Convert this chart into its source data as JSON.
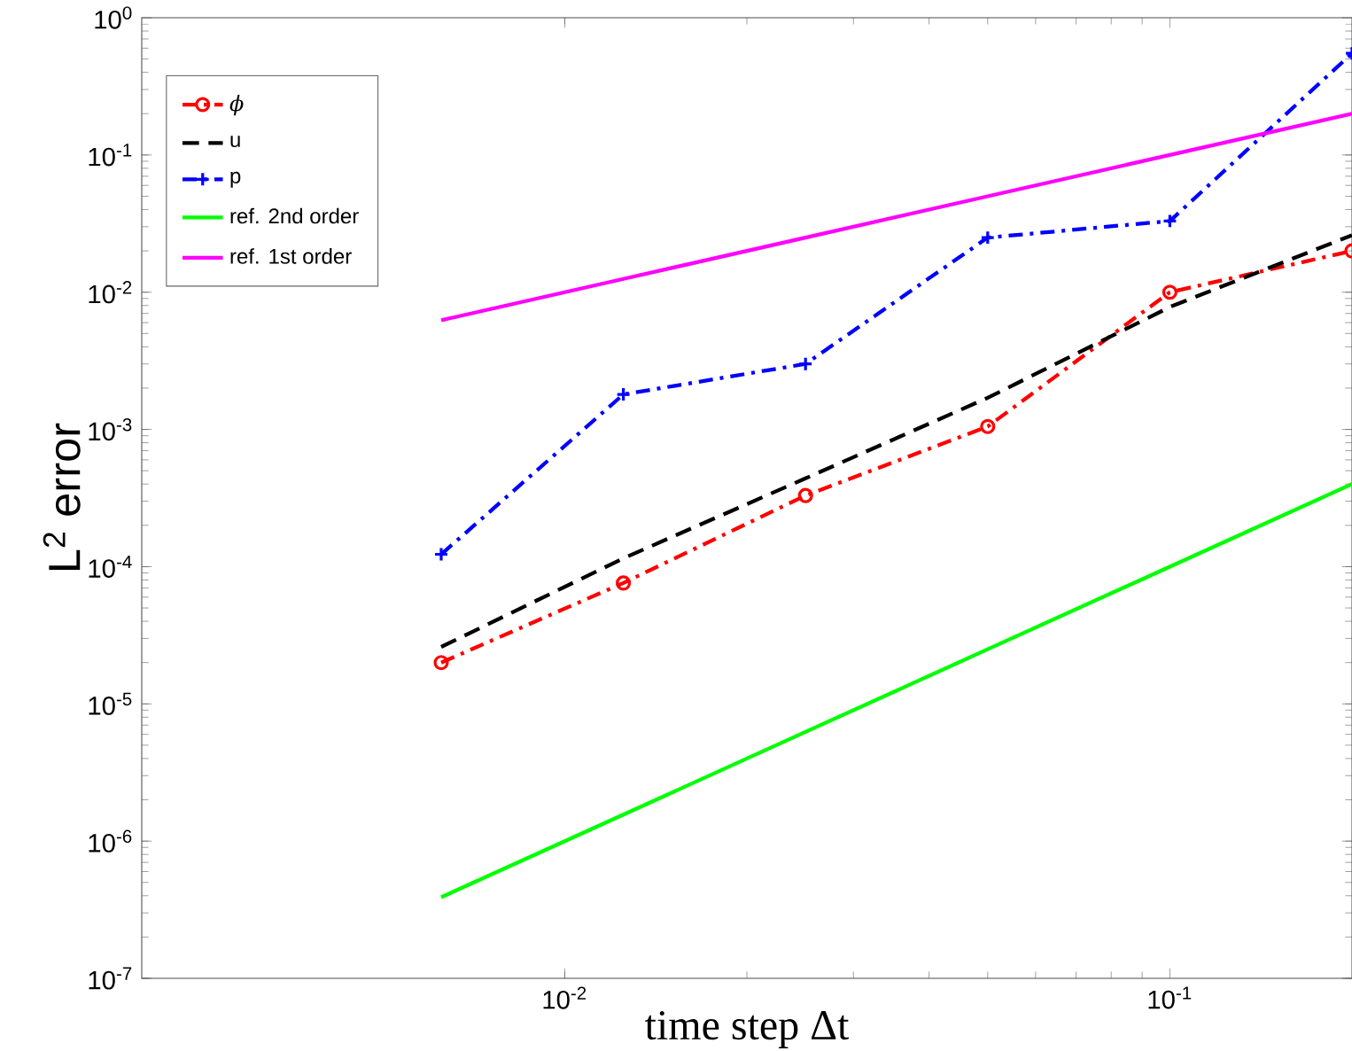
{
  "chart_data": {
    "type": "line",
    "xlabel": "time step Δt",
    "ylabel": "L$^{2}$ error",
    "log": "xy",
    "legend": "top left",
    "xlim": [
      0.002,
      0.2
    ],
    "ylim": [
      1e-07,
      1
    ],
    "xticks": [
      {
        "value": 0.01,
        "label": "10$^{-2}$"
      },
      {
        "value": 0.1,
        "label": "10$^{-1}$"
      }
    ],
    "yticks": [
      {
        "value": 1e-07,
        "label": "10$^{-7}$"
      },
      {
        "value": 1e-06,
        "label": "10$^{-6}$"
      },
      {
        "value": 1e-05,
        "label": "10$^{-5}$"
      },
      {
        "value": 0.0001,
        "label": "10$^{-4}$"
      },
      {
        "value": 0.001,
        "label": "10$^{-3}$"
      },
      {
        "value": 0.01,
        "label": "10$^{-2}$"
      },
      {
        "value": 0.1,
        "label": "10$^{-1}$"
      },
      {
        "value": 1,
        "label": "10$^{0}$"
      }
    ],
    "x": [
      0.00625,
      0.0125,
      0.025,
      0.05,
      0.1,
      0.2
    ],
    "series": [
      {
        "name": "ϕ",
        "color": "#ff0000",
        "marker": "circle",
        "line_style": "dashdot",
        "values": [
          2e-05,
          7.6e-05,
          0.00033,
          0.00105,
          0.01,
          0.02
        ]
      },
      {
        "name": "u",
        "color": "#000000",
        "marker": "none",
        "line_style": "dashed",
        "values": [
          2.6e-05,
          0.000115,
          0.00044,
          0.0017,
          0.0078,
          0.026
        ]
      },
      {
        "name": "p",
        "color": "#0000ff",
        "marker": "cross",
        "line_style": "dashdot",
        "values": [
          0.000123,
          0.0018,
          0.003,
          0.025,
          0.033,
          0.55
        ]
      },
      {
        "name": "ref. 2nd order",
        "color": "#00ff00",
        "marker": "none",
        "line_style": "solid",
        "values": [
          3.9e-07,
          1.56e-06,
          6.25e-06,
          2.5e-05,
          0.0001,
          0.0004
        ]
      },
      {
        "name": "ref. 1st order",
        "color": "#ff00ff",
        "marker": "none",
        "line_style": "solid",
        "values": [
          0.00625,
          0.0125,
          0.025,
          0.05,
          0.1,
          0.2
        ]
      }
    ]
  }
}
